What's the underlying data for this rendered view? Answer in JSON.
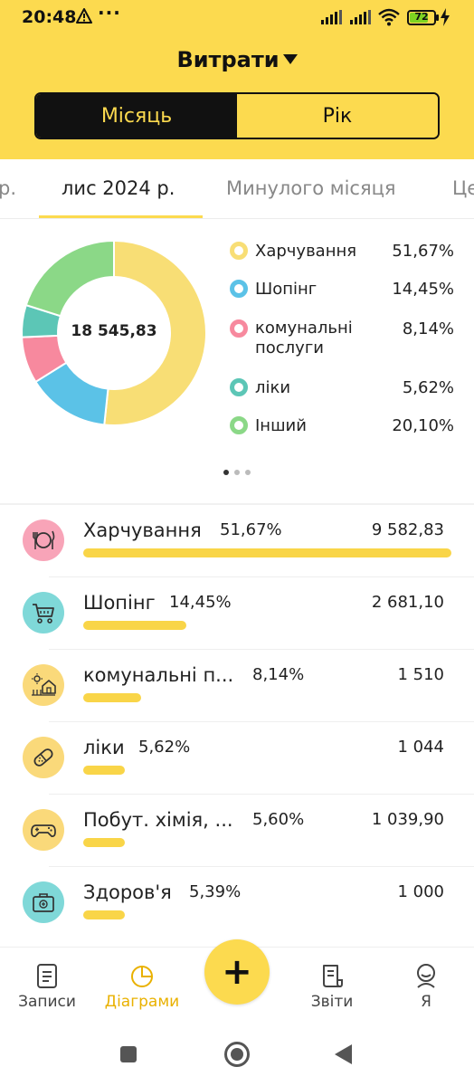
{
  "status_bar": {
    "time": "20:48",
    "dots": "···",
    "battery": "72",
    "battery_level": 0.72
  },
  "header": {
    "title": "Витрати",
    "segments": [
      {
        "label": "Місяць",
        "active": true
      },
      {
        "label": "Рік",
        "active": false
      }
    ]
  },
  "period_tabs": {
    "items": [
      {
        "label": "р.",
        "active": false
      },
      {
        "label": "лис 2024 р.",
        "active": true
      },
      {
        "label": "Минулого місяця",
        "active": false
      },
      {
        "label": "Це",
        "active": false
      }
    ]
  },
  "chart_data": {
    "type": "pie",
    "total_label": "18 545,83",
    "slices": [
      {
        "name": "Харчування",
        "value": 51.67,
        "label": "51,67%",
        "color": "#F8DE75"
      },
      {
        "name": "Шопінг",
        "value": 14.45,
        "label": "14,45%",
        "color": "#5BC2E7"
      },
      {
        "name": "комунальні послуги",
        "value": 8.14,
        "label": "8,14%",
        "color": "#F7899E"
      },
      {
        "name": "ліки",
        "value": 5.62,
        "label": "5,62%",
        "color": "#5CC6B6"
      },
      {
        "name": "Інший",
        "value": 20.1,
        "label": "20,10%",
        "color": "#8BD887"
      }
    ]
  },
  "legend": {
    "items": [
      {
        "name": "Харчування",
        "pct": "51,67%",
        "color": "#F8DE75"
      },
      {
        "name": "Шопінг",
        "pct": "14,45%",
        "color": "#5BC2E7"
      },
      {
        "name": "комунальні послуги",
        "pct": "8,14%",
        "color": "#F7899E"
      },
      {
        "name": "ліки",
        "pct": "5,62%",
        "color": "#5CC6B6"
      },
      {
        "name": "Інший",
        "pct": "20,10%",
        "color": "#8BD887"
      }
    ]
  },
  "pager": {
    "pages": 3,
    "current": 1
  },
  "categories": {
    "items": [
      {
        "name": "Харчування",
        "pct": "51,67%",
        "amount": "9 582,83",
        "share": 1.0,
        "icon": "food-icon",
        "icon_bg": "#F8A4B8"
      },
      {
        "name": "Шопінг",
        "pct": "14,45%",
        "amount": "2 681,10",
        "share": 0.2797,
        "icon": "cart-icon",
        "icon_bg": "#7FD8D8"
      },
      {
        "name": "комунальні п...",
        "pct": "8,14%",
        "amount": "1 510",
        "share": 0.1576,
        "icon": "house-icon",
        "icon_bg": "#FAD97A"
      },
      {
        "name": "ліки",
        "pct": "5,62%",
        "amount": "1 044",
        "share": 0.1088,
        "icon": "pill-icon",
        "icon_bg": "#FAD97A"
      },
      {
        "name": "Побут. хімія, ...",
        "pct": "5,60%",
        "amount": "1 039,90",
        "share": 0.1085,
        "icon": "gamepad-icon",
        "icon_bg": "#FAD97A"
      },
      {
        "name": "Здоров'я",
        "pct": "5,39%",
        "amount": "1 000",
        "share": 0.1043,
        "icon": "first-aid-icon",
        "icon_bg": "#7FD8D8"
      }
    ]
  },
  "bottom_nav": {
    "items": [
      {
        "label": "Записи",
        "icon": "notes-icon",
        "active": false
      },
      {
        "label": "Діаграми",
        "icon": "pie-chart-icon",
        "active": true
      },
      {
        "label": "Звіти",
        "icon": "report-icon",
        "active": false
      },
      {
        "label": "Я",
        "icon": "profile-icon",
        "active": false
      }
    ],
    "fab_label": "+"
  },
  "colors": {
    "accent": "#FCDA4F",
    "bar": "#F9D548",
    "active_nav": "#E9B100"
  }
}
